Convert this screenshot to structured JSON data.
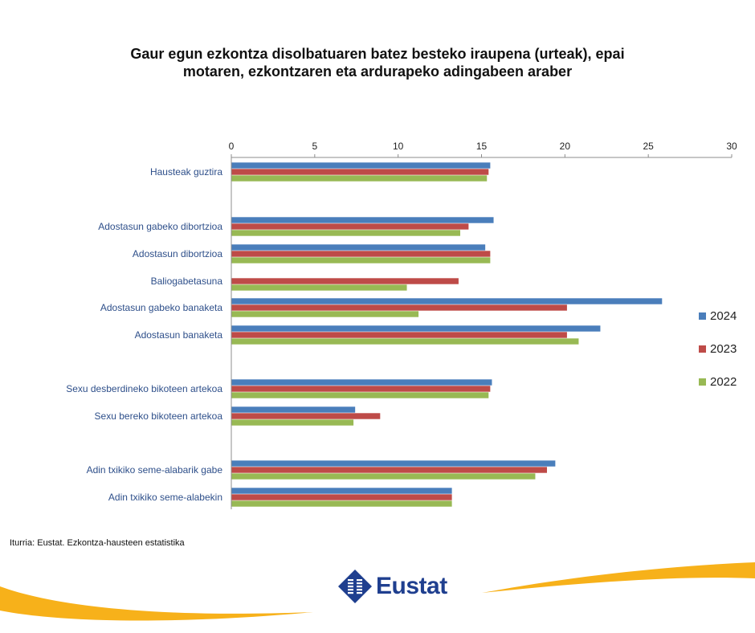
{
  "title_lines": [
    "Gaur egun ezkontza disolbatuaren batez besteko iraupena (urteak), epai",
    "motaren, ezkontzaren eta ardurapeko adingabeen araber"
  ],
  "source": "Iturria: Eustat. Ezkontza-hausteen estatistika",
  "logo_text": "Eustat",
  "colors": {
    "2024": "#4a7ebb",
    "2023": "#be4b48",
    "2022": "#98b954",
    "swoosh": "#f7b11a",
    "logo": "#1f3f8f"
  },
  "chart_data": {
    "type": "bar",
    "orientation": "horizontal",
    "title": "Gaur egun ezkontza disolbatuaren batez besteko iraupena (urteak), epai motaren, ezkontzaren eta ardurapeko adingabeen araber",
    "xlim": [
      0,
      30
    ],
    "xticks": [
      0,
      5,
      10,
      15,
      20,
      25,
      30
    ],
    "legend_position": "right",
    "categories": [
      "Hausteak guztira",
      "Adostasun gabeko dibortzioa",
      "Adostasun dibortzioa",
      "Baliogabetasuna",
      "Adostasun gabeko banaketa",
      "Adostasun banaketa",
      "Sexu desberdineko bikoteen artekoa",
      "Sexu bereko bikoteen artekoa",
      "Adin txikiko seme-alabarik gabe",
      "Adin txikiko seme-alabekin"
    ],
    "series": [
      {
        "name": "2024",
        "values": [
          15.5,
          15.7,
          15.2,
          null,
          25.8,
          22.1,
          15.6,
          7.4,
          19.4,
          13.2
        ]
      },
      {
        "name": "2023",
        "values": [
          15.4,
          14.2,
          15.5,
          13.6,
          20.1,
          20.1,
          15.5,
          8.9,
          18.9,
          13.2
        ]
      },
      {
        "name": "2022",
        "values": [
          15.3,
          13.7,
          15.5,
          10.5,
          11.2,
          20.8,
          15.4,
          7.3,
          18.2,
          13.2
        ]
      }
    ]
  }
}
